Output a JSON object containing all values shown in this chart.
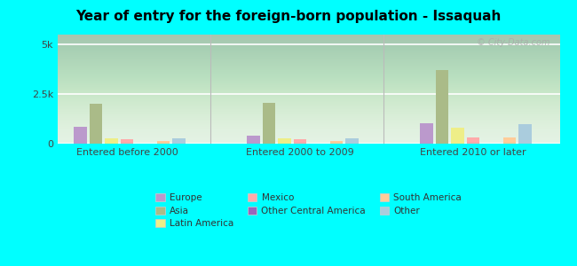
{
  "title": "Year of entry for the foreign-born population - Issaquah",
  "background_color": "#00FFFF",
  "categories": [
    "Entered before 2000",
    "Entered 2000 to 2009",
    "Entered 2010 or later"
  ],
  "series_order": [
    "Europe",
    "Asia",
    "Latin America",
    "Mexico",
    "Other Central America",
    "South America",
    "Other"
  ],
  "series": {
    "Europe": [
      850,
      400,
      1050
    ],
    "Asia": [
      2000,
      2050,
      3700
    ],
    "Latin America": [
      280,
      260,
      800
    ],
    "Mexico": [
      220,
      210,
      330
    ],
    "Other Central America": [
      0,
      0,
      0
    ],
    "South America": [
      140,
      130,
      300
    ],
    "Other": [
      260,
      280,
      1000
    ]
  },
  "colors": {
    "Europe": "#bb99cc",
    "Asia": "#aabb88",
    "Latin America": "#eeee88",
    "Mexico": "#ffaaaa",
    "Other Central America": "#9966bb",
    "South America": "#ffcc99",
    "Other": "#aaccdd"
  },
  "legend_order": [
    [
      "Europe",
      "Asia",
      "Latin America"
    ],
    [
      "Mexico",
      "Other Central America",
      "South America"
    ],
    [
      "Other"
    ]
  ],
  "legend_columns": [
    [
      "Europe",
      "Mexico",
      "Other"
    ],
    [
      "Asia",
      "Other Central America"
    ],
    [
      "Latin America",
      "South America"
    ]
  ],
  "ylim": [
    0,
    5500
  ],
  "ytick_labels": [
    "0",
    "2.5k",
    "5k"
  ],
  "ytick_values": [
    0,
    2500,
    5000
  ],
  "watermark": "© City-Data.com"
}
